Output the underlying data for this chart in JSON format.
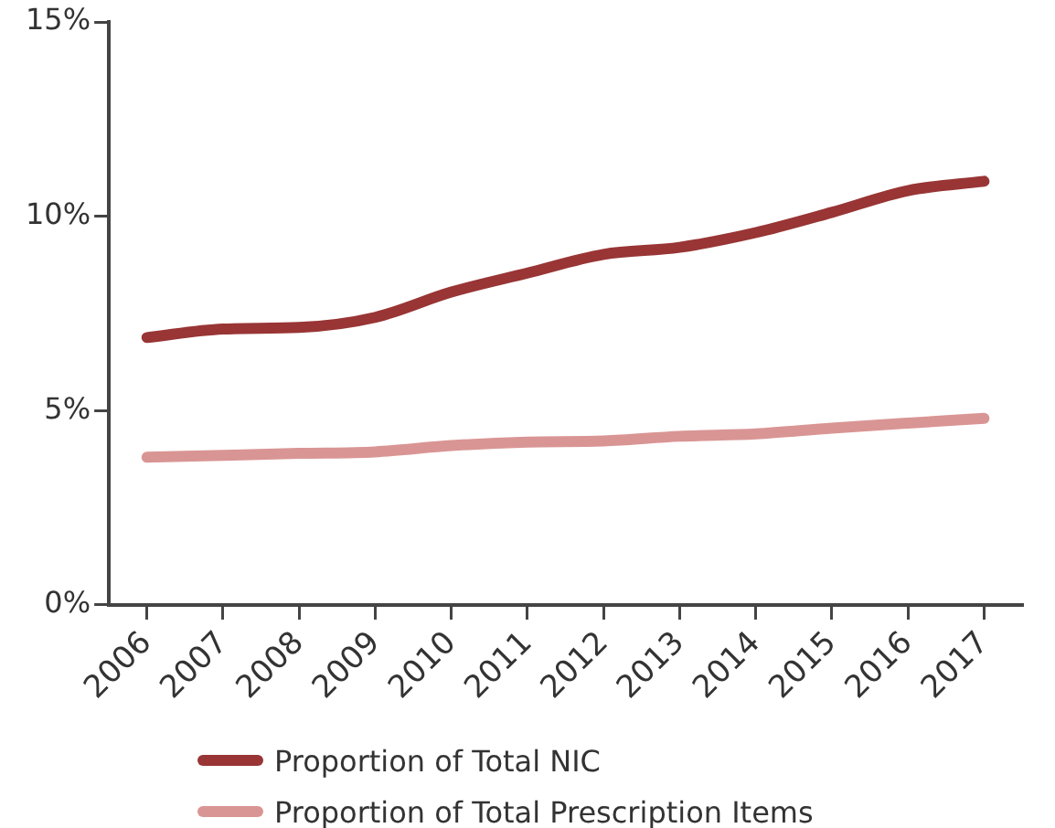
{
  "chart_data": {
    "type": "line",
    "categories": [
      "2006",
      "2007",
      "2008",
      "2009",
      "2010",
      "2011",
      "2012",
      "2013",
      "2014",
      "2015",
      "2016",
      "2017"
    ],
    "series": [
      {
        "name": "Proportion of Total NIC",
        "color": "#993535",
        "values": [
          6.88,
          7.1,
          7.14,
          7.4,
          8.05,
          8.54,
          9.02,
          9.2,
          9.58,
          10.1,
          10.66,
          10.9
        ]
      },
      {
        "name": "Proportion of Total Prescription Items",
        "color": "#d99594",
        "values": [
          3.8,
          3.85,
          3.9,
          3.94,
          4.1,
          4.19,
          4.22,
          4.34,
          4.4,
          4.55,
          4.68,
          4.8
        ]
      }
    ],
    "ylim": [
      0,
      15
    ],
    "yticks": [
      {
        "value": 0,
        "label": "0%"
      },
      {
        "value": 5,
        "label": "5%"
      },
      {
        "value": 10,
        "label": "10%"
      },
      {
        "value": 15,
        "label": "15%"
      }
    ],
    "grid": false,
    "legend": "bottom left",
    "marker": "none",
    "line_style": "solid"
  }
}
